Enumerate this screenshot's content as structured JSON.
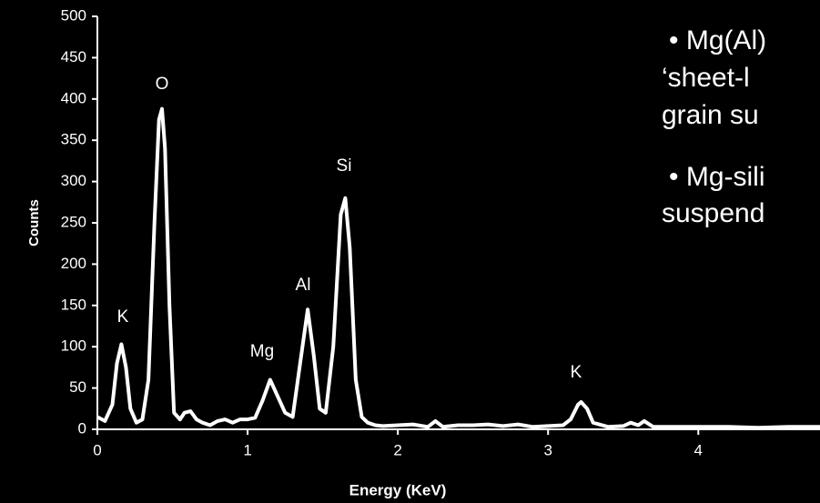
{
  "chart_data": {
    "type": "line",
    "xlabel": "Energy (KeV)",
    "ylabel": "Counts",
    "x": [
      0.0,
      0.05,
      0.1,
      0.13,
      0.16,
      0.19,
      0.22,
      0.26,
      0.3,
      0.34,
      0.38,
      0.41,
      0.43,
      0.45,
      0.48,
      0.51,
      0.55,
      0.58,
      0.62,
      0.66,
      0.7,
      0.75,
      0.8,
      0.85,
      0.9,
      0.95,
      1.0,
      1.05,
      1.1,
      1.15,
      1.2,
      1.25,
      1.3,
      1.35,
      1.4,
      1.44,
      1.48,
      1.52,
      1.57,
      1.62,
      1.65,
      1.68,
      1.72,
      1.76,
      1.8,
      1.85,
      1.9,
      2.0,
      2.1,
      2.2,
      2.25,
      2.3,
      2.4,
      2.5,
      2.6,
      2.7,
      2.8,
      2.9,
      3.0,
      3.1,
      3.15,
      3.2,
      3.22,
      3.26,
      3.3,
      3.4,
      3.5,
      3.55,
      3.6,
      3.64,
      3.7,
      3.8,
      4.0,
      4.2,
      4.4,
      4.6,
      4.81
    ],
    "values": [
      15,
      10,
      30,
      80,
      103,
      75,
      25,
      8,
      12,
      60,
      250,
      375,
      388,
      340,
      150,
      20,
      12,
      20,
      22,
      12,
      8,
      5,
      10,
      12,
      8,
      12,
      12,
      14,
      35,
      60,
      40,
      20,
      15,
      80,
      145,
      90,
      25,
      20,
      100,
      260,
      280,
      220,
      60,
      15,
      8,
      5,
      4,
      5,
      6,
      3,
      10,
      3,
      5,
      5,
      6,
      4,
      6,
      3,
      4,
      5,
      12,
      30,
      33,
      25,
      8,
      3,
      4,
      8,
      5,
      10,
      3,
      3,
      3,
      3,
      2,
      3,
      3
    ],
    "color": "#ffffff",
    "xlim": [
      0,
      4.81
    ],
    "xticks": [
      0,
      1,
      2,
      3,
      4
    ],
    "ylim": [
      0,
      500
    ],
    "yticks": [
      0,
      50,
      100,
      150,
      200,
      250,
      300,
      350,
      400,
      450,
      500
    ],
    "annotations": [
      "K",
      "O",
      "Mg",
      "Al",
      "Si",
      "K"
    ]
  },
  "side_text": [
    "• Mg(Al)",
    "‘sheet-l",
    "grain su",
    "• Mg-sili",
    "suspend"
  ]
}
